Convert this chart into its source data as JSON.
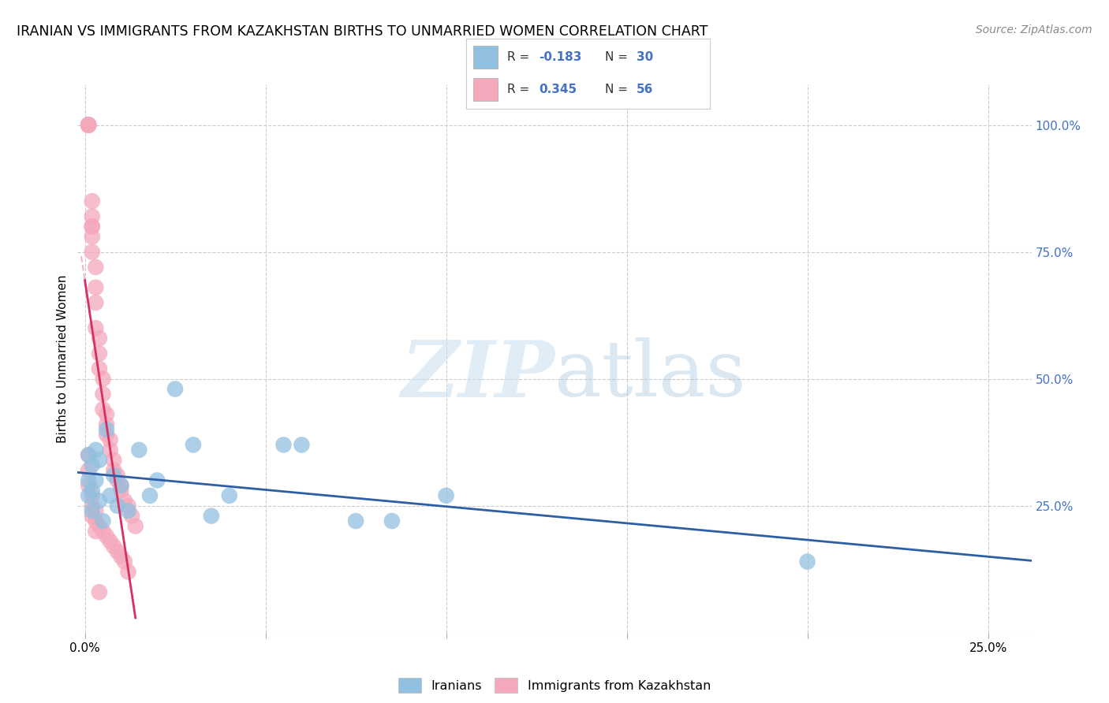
{
  "title": "IRANIAN VS IMMIGRANTS FROM KAZAKHSTAN BIRTHS TO UNMARRIED WOMEN CORRELATION CHART",
  "source": "Source: ZipAtlas.com",
  "ylabel": "Births to Unmarried Women",
  "ylim": [
    0.0,
    1.08
  ],
  "xlim": [
    -0.002,
    0.262
  ],
  "legend_R_blue": "-0.183",
  "legend_N_blue": "30",
  "legend_R_pink": "0.345",
  "legend_N_pink": "56",
  "blue_color": "#92C0E0",
  "pink_color": "#F4A8BB",
  "blue_line_color": "#2E5FA3",
  "pink_line_color": "#D63060",
  "pink_dash_color": "#E89AB0",
  "grid_color": "#CCCCCC",
  "right_tick_color": "#4472C4",
  "iranians_x": [
    0.001,
    0.001,
    0.001,
    0.002,
    0.002,
    0.002,
    0.003,
    0.003,
    0.004,
    0.004,
    0.005,
    0.006,
    0.007,
    0.008,
    0.009,
    0.01,
    0.012,
    0.015,
    0.018,
    0.02,
    0.025,
    0.03,
    0.035,
    0.04,
    0.055,
    0.06,
    0.075,
    0.085,
    0.1,
    0.2
  ],
  "iranians_y": [
    0.35,
    0.3,
    0.27,
    0.33,
    0.28,
    0.24,
    0.36,
    0.3,
    0.34,
    0.26,
    0.22,
    0.4,
    0.27,
    0.31,
    0.25,
    0.29,
    0.24,
    0.36,
    0.27,
    0.3,
    0.48,
    0.37,
    0.23,
    0.27,
    0.37,
    0.37,
    0.22,
    0.22,
    0.27,
    0.14
  ],
  "kazakhstan_x": [
    0.001,
    0.001,
    0.001,
    0.001,
    0.001,
    0.001,
    0.002,
    0.002,
    0.002,
    0.002,
    0.002,
    0.002,
    0.003,
    0.003,
    0.003,
    0.003,
    0.004,
    0.004,
    0.004,
    0.005,
    0.005,
    0.005,
    0.006,
    0.006,
    0.006,
    0.007,
    0.007,
    0.008,
    0.008,
    0.009,
    0.009,
    0.01,
    0.01,
    0.011,
    0.012,
    0.013,
    0.014,
    0.001,
    0.001,
    0.001,
    0.002,
    0.002,
    0.003,
    0.003,
    0.004,
    0.005,
    0.006,
    0.007,
    0.008,
    0.009,
    0.01,
    0.011,
    0.012,
    0.002,
    0.003,
    0.004
  ],
  "kazakhstan_y": [
    1.0,
    1.0,
    1.0,
    1.0,
    1.0,
    1.0,
    0.85,
    0.82,
    0.8,
    0.8,
    0.78,
    0.75,
    0.72,
    0.68,
    0.65,
    0.6,
    0.58,
    0.55,
    0.52,
    0.5,
    0.47,
    0.44,
    0.43,
    0.41,
    0.39,
    0.38,
    0.36,
    0.34,
    0.32,
    0.31,
    0.3,
    0.29,
    0.28,
    0.26,
    0.25,
    0.23,
    0.21,
    0.35,
    0.32,
    0.29,
    0.27,
    0.25,
    0.24,
    0.22,
    0.21,
    0.2,
    0.19,
    0.18,
    0.17,
    0.16,
    0.15,
    0.14,
    0.12,
    0.23,
    0.2,
    0.08
  ]
}
